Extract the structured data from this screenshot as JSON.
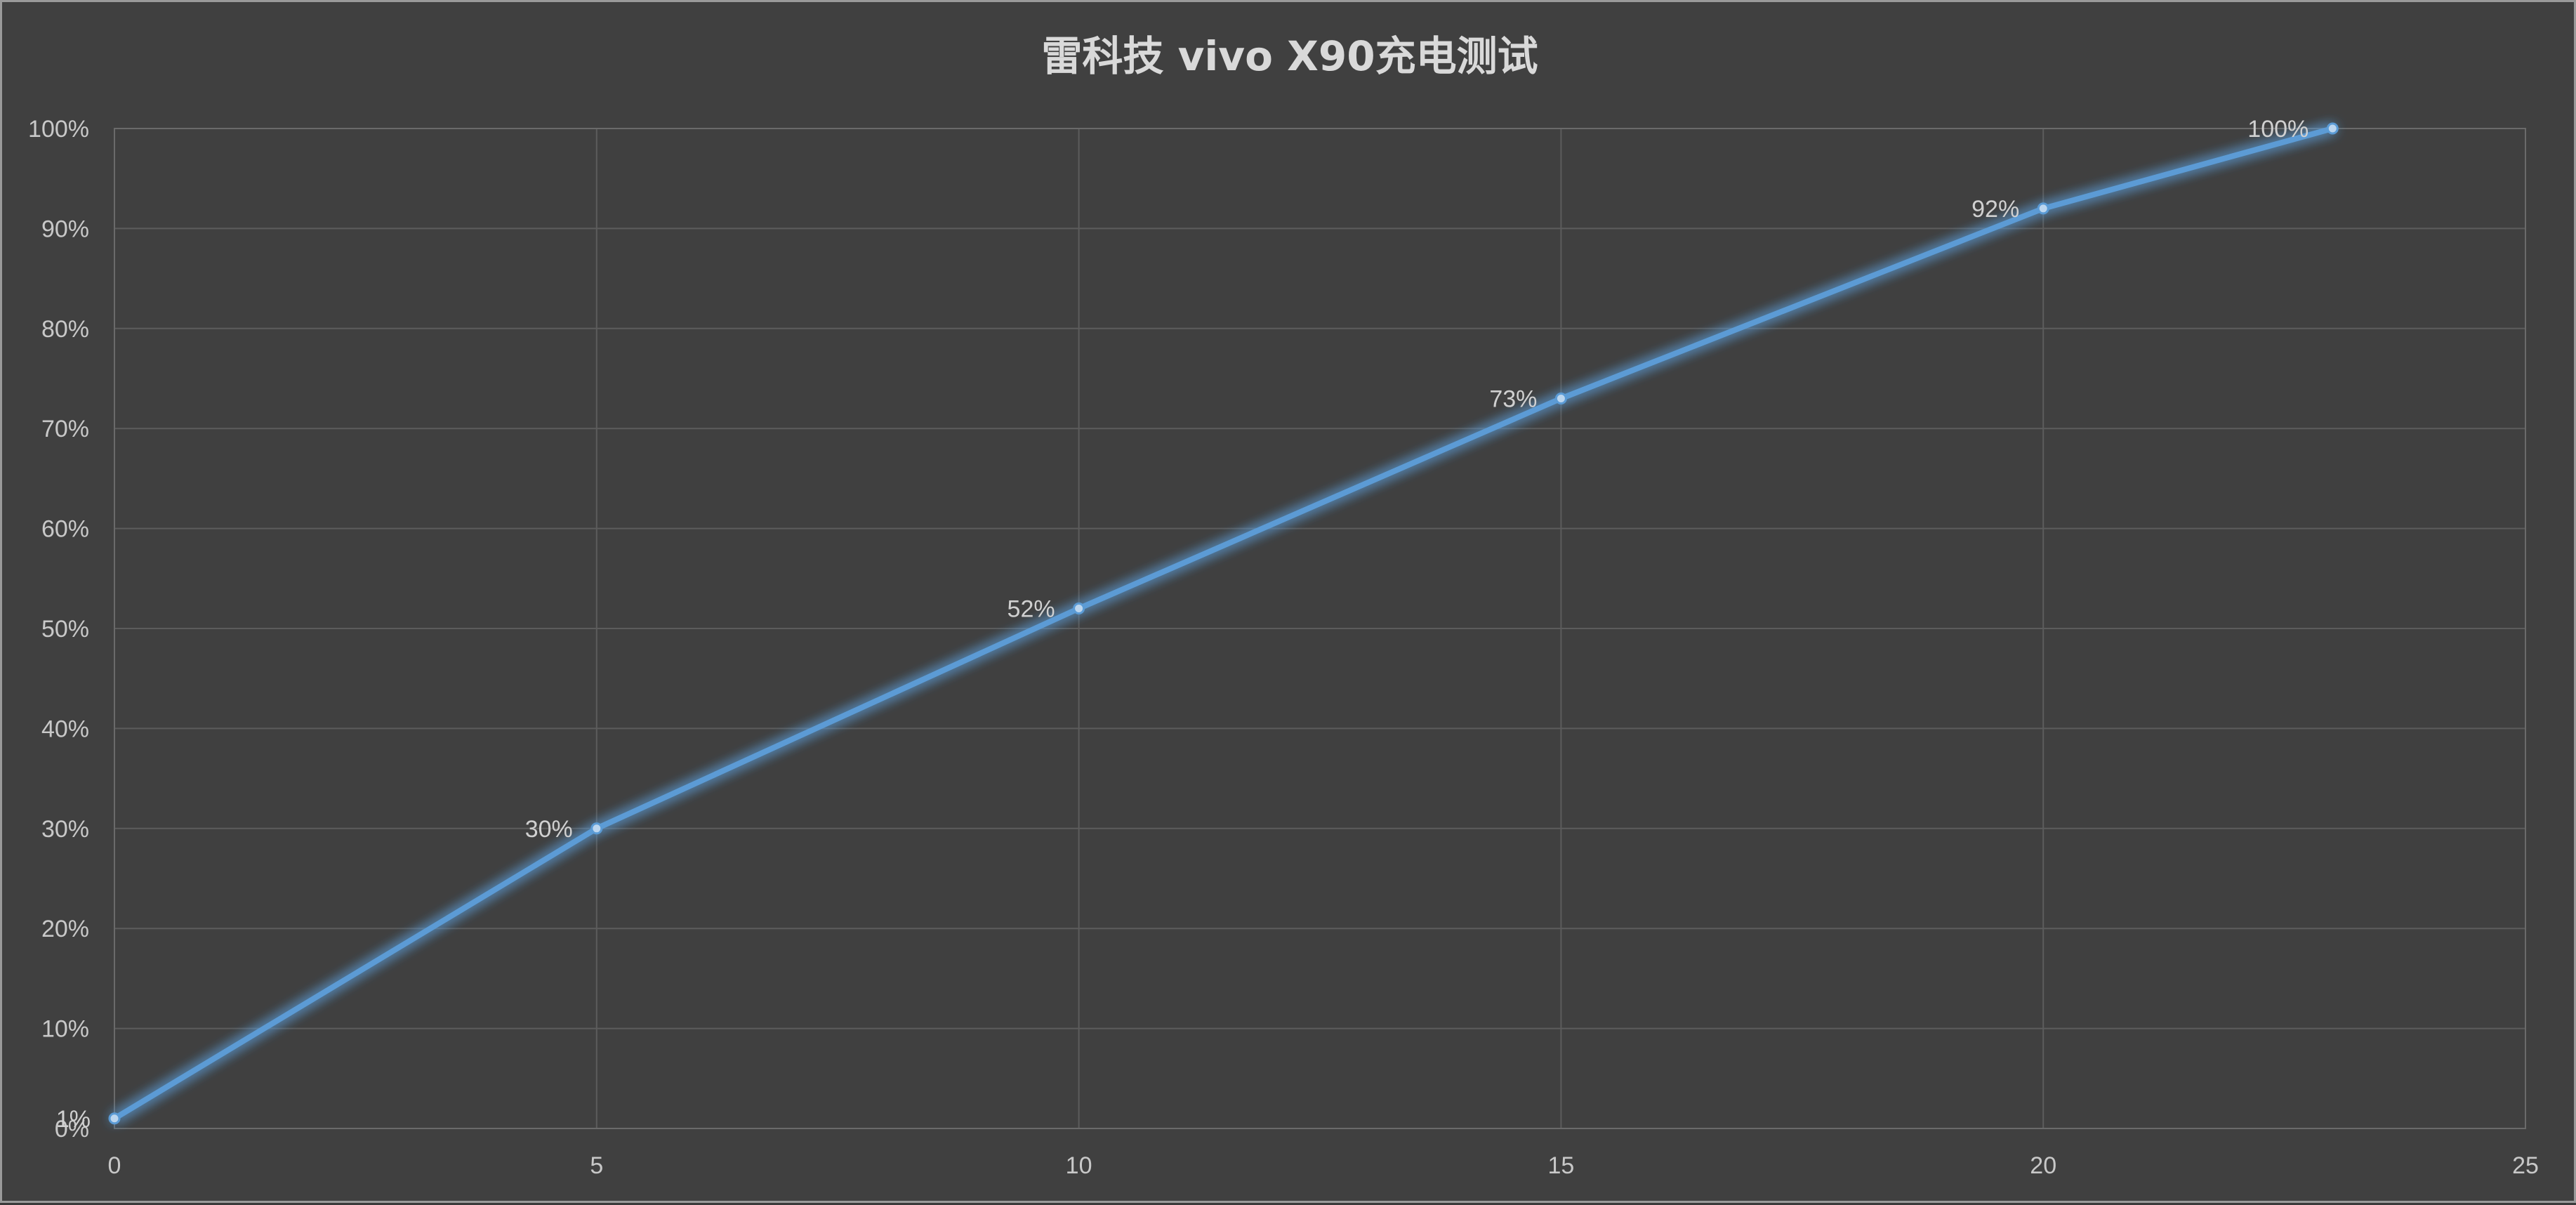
{
  "chart_data": {
    "type": "line",
    "title": "雷科技 vivo X90充电测试",
    "xlabel": "",
    "ylabel": "",
    "xlim": [
      0,
      25
    ],
    "ylim": [
      0,
      1
    ],
    "x_ticks": [
      "0",
      "5",
      "10",
      "15",
      "20",
      "25"
    ],
    "y_ticks": [
      "0%",
      "10%",
      "20%",
      "30%",
      "40%",
      "50%",
      "60%",
      "70%",
      "80%",
      "90%",
      "100%"
    ],
    "grid": true,
    "legend": "none",
    "series": [
      {
        "x": [
          0,
          5,
          10,
          15,
          20,
          23
        ],
        "y": [
          0.01,
          0.3,
          0.52,
          0.73,
          0.92,
          1.0
        ],
        "labels": [
          "1%",
          "30%",
          "52%",
          "73%",
          "92%",
          "100%"
        ],
        "color": "#5b9bd5"
      }
    ]
  }
}
